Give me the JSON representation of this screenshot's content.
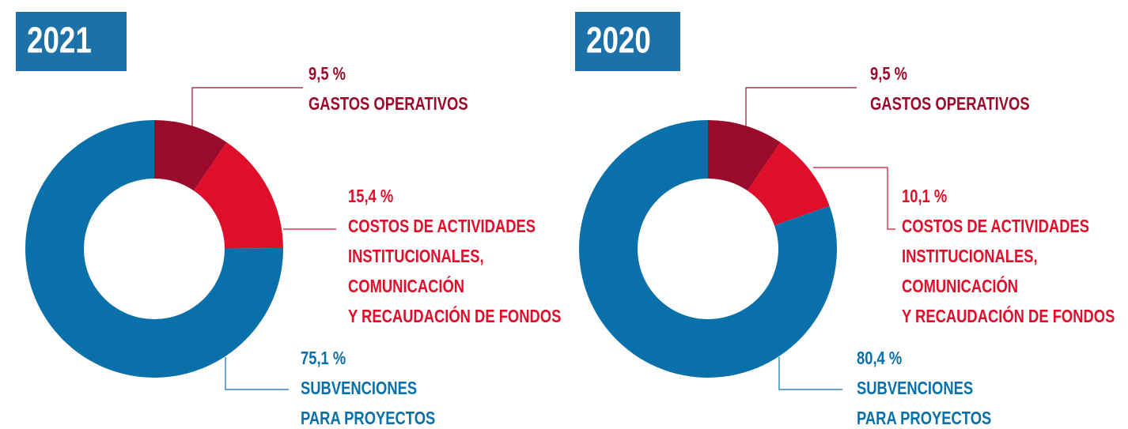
{
  "chart_data": [
    {
      "type": "pie",
      "title": "2021",
      "categories": [
        [
          "GASTOS OPERATIVOS"
        ],
        [
          "COSTOS DE ACTIVIDADES",
          "INSTITUCIONALES,",
          "COMUNICACIÓN",
          "Y RECAUDACIÓN DE FONDOS"
        ],
        [
          "SUBVENCIONES",
          "PARA PROYECTOS"
        ]
      ],
      "values": [
        9.5,
        15.4,
        75.1
      ],
      "value_labels": [
        "9,5 %",
        "15,4 %",
        "75,1 %"
      ],
      "colors": [
        "#9a0b2b",
        "#df0f2c",
        "#0a70a9"
      ],
      "title_color": "#1c71a9"
    },
    {
      "type": "pie",
      "title": "2020",
      "categories": [
        [
          "GASTOS OPERATIVOS"
        ],
        [
          "COSTOS DE ACTIVIDADES",
          "INSTITUCIONALES,",
          "COMUNICACIÓN",
          "Y RECAUDACIÓN DE FONDOS"
        ],
        [
          "SUBVENCIONES",
          "PARA PROYECTOS"
        ]
      ],
      "values": [
        9.5,
        10.1,
        80.4
      ],
      "value_labels": [
        "9,5 %",
        "10,1 %",
        "80,4 %"
      ],
      "colors": [
        "#9a0b2b",
        "#df0f2c",
        "#0a70a9"
      ],
      "title_color": "#1c71a9"
    }
  ]
}
